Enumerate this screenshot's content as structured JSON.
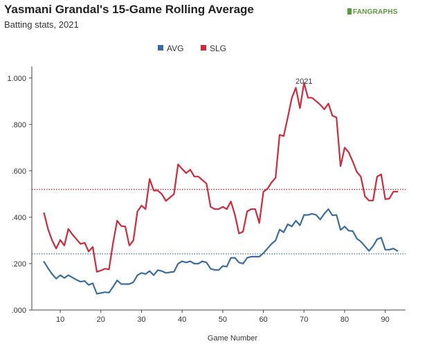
{
  "header": {
    "title": "Yasmani Grandal's 15-Game Rolling Average",
    "subtitle": "Batting stats, 2021",
    "logo_text": "FANGRAPHS"
  },
  "chart_data": {
    "type": "line",
    "title": "Yasmani Grandal's 15-Game Rolling Average",
    "subtitle": "Batting stats, 2021",
    "xlabel": "Game Number",
    "ylabel": "",
    "annotation": "2021",
    "xlim": [
      3,
      95
    ],
    "ylim": [
      0,
      1.05
    ],
    "x_ticks": [
      10,
      20,
      30,
      40,
      50,
      60,
      70,
      80,
      90
    ],
    "y_ticks": [
      0,
      0.2,
      0.4,
      0.6,
      0.8,
      1.0
    ],
    "y_tick_labels": [
      ".000",
      ".200",
      ".400",
      ".600",
      ".800",
      "1.000"
    ],
    "legend_position": "top-center",
    "x": [
      6,
      7,
      8,
      9,
      10,
      11,
      12,
      13,
      14,
      15,
      16,
      17,
      18,
      19,
      20,
      21,
      22,
      23,
      24,
      25,
      26,
      27,
      28,
      29,
      30,
      31,
      32,
      33,
      34,
      35,
      36,
      37,
      38,
      39,
      40,
      41,
      42,
      43,
      44,
      45,
      46,
      47,
      48,
      49,
      50,
      51,
      52,
      53,
      54,
      55,
      56,
      57,
      58,
      59,
      60,
      61,
      62,
      63,
      64,
      65,
      66,
      67,
      68,
      69,
      70,
      71,
      72,
      73,
      74,
      75,
      76,
      77,
      78,
      79,
      80,
      81,
      82,
      83,
      84,
      85,
      86,
      87,
      88,
      89,
      90,
      91,
      92,
      93
    ],
    "series": [
      {
        "name": "AVG",
        "color": "#3a6d9f",
        "values": [
          0.208,
          0.18,
          0.155,
          0.135,
          0.15,
          0.138,
          0.15,
          0.14,
          0.13,
          0.122,
          0.125,
          0.108,
          0.115,
          0.07,
          0.073,
          0.077,
          0.075,
          0.1,
          0.128,
          0.112,
          0.112,
          0.112,
          0.12,
          0.15,
          0.16,
          0.155,
          0.168,
          0.15,
          0.172,
          0.168,
          0.16,
          0.163,
          0.165,
          0.2,
          0.21,
          0.205,
          0.21,
          0.2,
          0.2,
          0.21,
          0.205,
          0.178,
          0.173,
          0.172,
          0.19,
          0.187,
          0.225,
          0.225,
          0.205,
          0.2,
          0.225,
          0.23,
          0.23,
          0.23,
          0.245,
          0.265,
          0.285,
          0.3,
          0.347,
          0.335,
          0.37,
          0.36,
          0.385,
          0.365,
          0.41,
          0.41,
          0.415,
          0.41,
          0.39,
          0.415,
          0.435,
          0.408,
          0.41,
          0.345,
          0.36,
          0.342,
          0.34,
          0.308,
          0.295,
          0.275,
          0.255,
          0.275,
          0.305,
          0.312,
          0.26,
          0.26,
          0.265,
          0.255
        ]
      },
      {
        "name": "SLG",
        "color": "#d2283a",
        "values": [
          0.418,
          0.348,
          0.3,
          0.265,
          0.302,
          0.278,
          0.35,
          0.325,
          0.305,
          0.285,
          0.29,
          0.252,
          0.272,
          0.165,
          0.17,
          0.178,
          0.175,
          0.29,
          0.385,
          0.362,
          0.36,
          0.278,
          0.3,
          0.425,
          0.45,
          0.435,
          0.565,
          0.515,
          0.515,
          0.5,
          0.47,
          0.485,
          0.5,
          0.628,
          0.608,
          0.59,
          0.605,
          0.575,
          0.575,
          0.56,
          0.545,
          0.445,
          0.435,
          0.435,
          0.445,
          0.435,
          0.468,
          0.41,
          0.33,
          0.338,
          0.425,
          0.435,
          0.435,
          0.375,
          0.51,
          0.522,
          0.55,
          0.57,
          0.755,
          0.75,
          0.83,
          0.915,
          0.958,
          0.87,
          0.978,
          0.915,
          0.915,
          0.9,
          0.885,
          0.865,
          0.89,
          0.838,
          0.83,
          0.62,
          0.7,
          0.68,
          0.64,
          0.595,
          0.575,
          0.49,
          0.472,
          0.472,
          0.575,
          0.585,
          0.478,
          0.48,
          0.51,
          0.51
        ]
      }
    ],
    "reference_lines": [
      {
        "series": "SLG",
        "value": 0.52
      },
      {
        "series": "AVG",
        "value": 0.242
      }
    ]
  }
}
